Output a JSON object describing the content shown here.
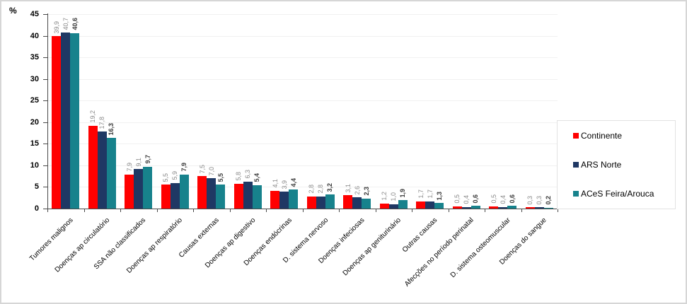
{
  "chart_data": {
    "type": "bar",
    "title": "",
    "xlabel": "",
    "ylabel": "%",
    "ylim": [
      0,
      45
    ],
    "ytick_step": 5,
    "grid": true,
    "legend_position": "right",
    "value_label_decimal_separator": ",",
    "categories": [
      "Tumores malignos",
      "Doenças ap circulatório",
      "SSA não classificados",
      "Doenças ap respiratório",
      "Causas externas",
      "Doenças ap digestivo",
      "Doenças endócrinas",
      "D. sistema nervoso",
      "Doenças infeciosas",
      "Doenças ap geniturinário",
      "Outras causas",
      "Afecções no período perinatal",
      "D. sistema osteomuscular",
      "Doenças do sangue"
    ],
    "series": [
      {
        "name": "Continente",
        "color": "#FF0000",
        "values": [
          39.9,
          19.2,
          7.9,
          5.5,
          7.5,
          5.8,
          4.1,
          2.8,
          3.1,
          1.2,
          1.7,
          0.5,
          0.5,
          0.3
        ]
      },
      {
        "name": "ARS Norte",
        "color": "#1F3864",
        "values": [
          40.7,
          17.8,
          9.1,
          5.9,
          7.0,
          6.3,
          3.9,
          2.8,
          2.6,
          1.0,
          1.7,
          0.4,
          0.4,
          0.3
        ]
      },
      {
        "name": "ACeS Feira/Arouca",
        "color": "#17828C",
        "values": [
          40.6,
          16.3,
          9.7,
          7.9,
          5.5,
          5.4,
          4.4,
          3.2,
          2.3,
          1.9,
          1.3,
          0.6,
          0.6,
          0.2
        ]
      }
    ]
  }
}
